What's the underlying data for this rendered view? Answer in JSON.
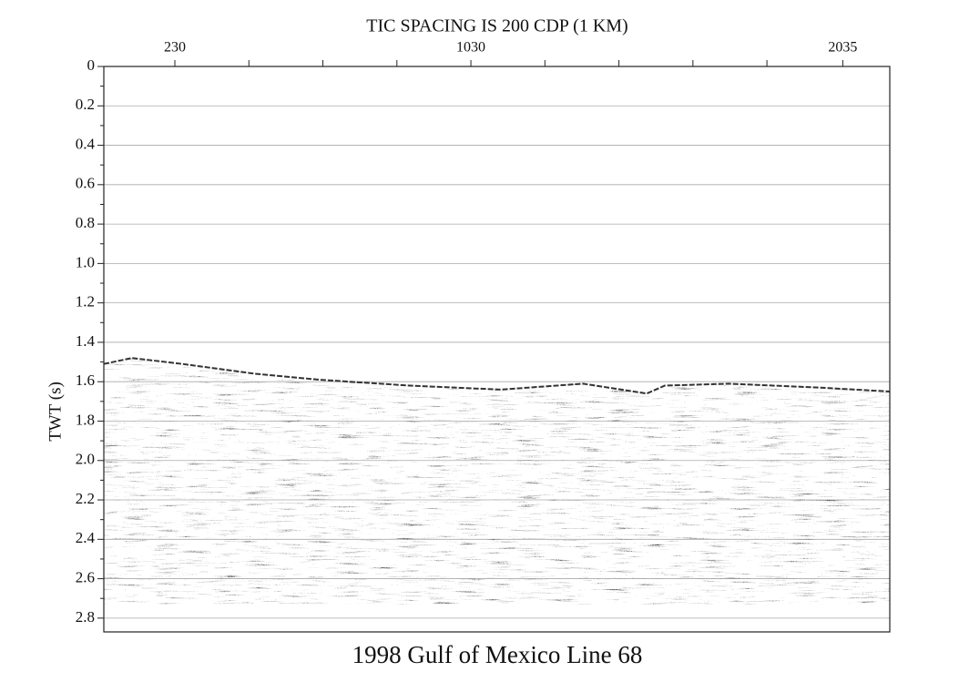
{
  "chart_data": {
    "type": "seismic",
    "title": "TIC SPACING IS 200 CDP (1 KM)",
    "y_label": "TWT (s)",
    "caption": "1998 Gulf of Mexico Line 68",
    "xlim": [
      38,
      2162
    ],
    "xticks": [
      230,
      1030,
      2035
    ],
    "xminor_ticks": [
      430,
      630,
      830,
      1230,
      1430,
      1630,
      1830
    ],
    "ylim": [
      0,
      2.87
    ],
    "y_inverted": true,
    "yticks": [
      0,
      0.2,
      0.4,
      0.6,
      0.8,
      {
        "value": 1,
        "label": "1.0"
      },
      1.2,
      1.4,
      1.6,
      1.8,
      {
        "value": 2,
        "label": "2.0"
      },
      2.2,
      2.4,
      2.6,
      2.8
    ],
    "yminor_ticks": [
      0.1,
      0.3,
      0.5,
      0.7,
      0.9,
      1.1,
      1.3,
      1.5,
      1.7,
      1.9,
      2.1,
      2.3,
      2.5,
      2.7
    ],
    "grid": true,
    "seafloor": {
      "x": [
        38,
        114,
        250,
        447,
        619,
        865,
        1111,
        1333,
        1505,
        1554,
        1727,
        1973,
        2162
      ],
      "values": [
        1.51,
        1.48,
        1.51,
        1.56,
        1.59,
        1.62,
        1.64,
        1.61,
        1.66,
        1.62,
        1.61,
        1.63,
        1.65
      ],
      "record_end": 2.73
    }
  }
}
